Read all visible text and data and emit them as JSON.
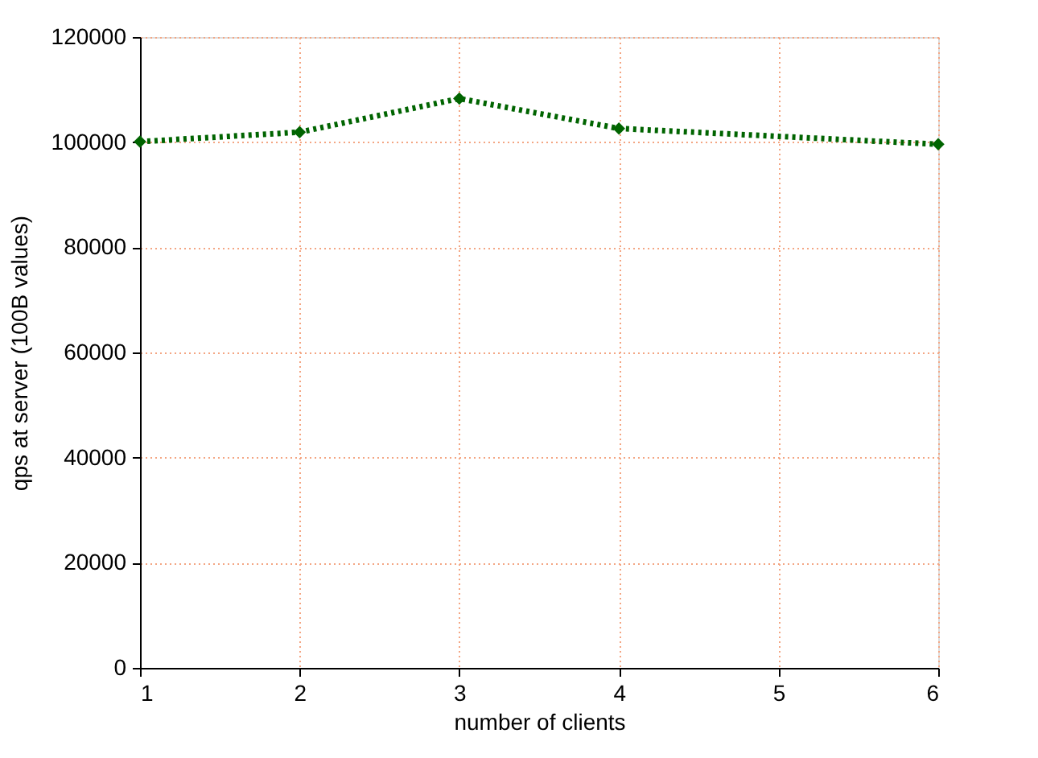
{
  "chart_data": {
    "type": "line",
    "xlabel": "number of clients",
    "ylabel": "qps at server (100B values)",
    "x": [
      1,
      2,
      3,
      4,
      6
    ],
    "series": [
      {
        "color": "#006400",
        "values": [
          100100,
          101900,
          108300,
          102600,
          99600
        ]
      }
    ],
    "xlim": [
      1,
      6
    ],
    "xticks": [
      1,
      2,
      3,
      4,
      5,
      6
    ],
    "ylim": [
      0,
      120000
    ],
    "yticks": [
      0,
      20000,
      40000,
      60000,
      80000,
      100000,
      120000
    ],
    "grid": true,
    "marker": "diamond",
    "line_style": "dotted"
  }
}
